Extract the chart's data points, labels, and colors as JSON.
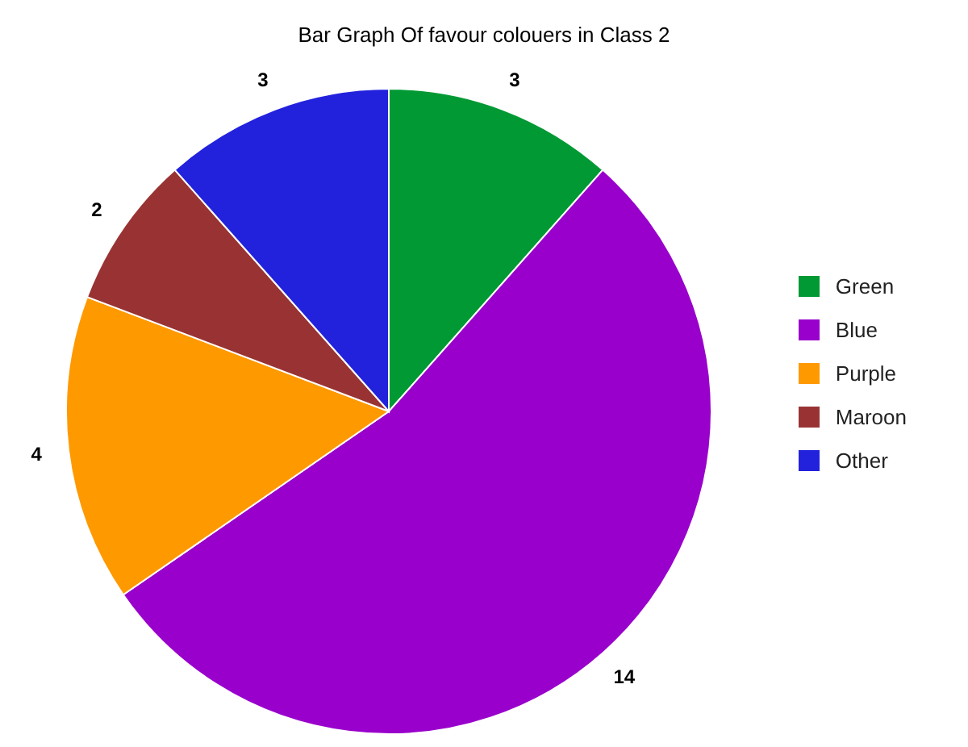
{
  "chart_data": {
    "type": "pie",
    "title": "Bar Graph Of favour colouers in Class 2",
    "categories": [
      "Green",
      "Blue",
      "Purple",
      "Maroon",
      "Other"
    ],
    "values": [
      3,
      14,
      4,
      2,
      3
    ],
    "colors": [
      "#009933",
      "#9900cc",
      "#ff9900",
      "#993333",
      "#2222dd"
    ],
    "data_labels": true,
    "legend": "right"
  }
}
